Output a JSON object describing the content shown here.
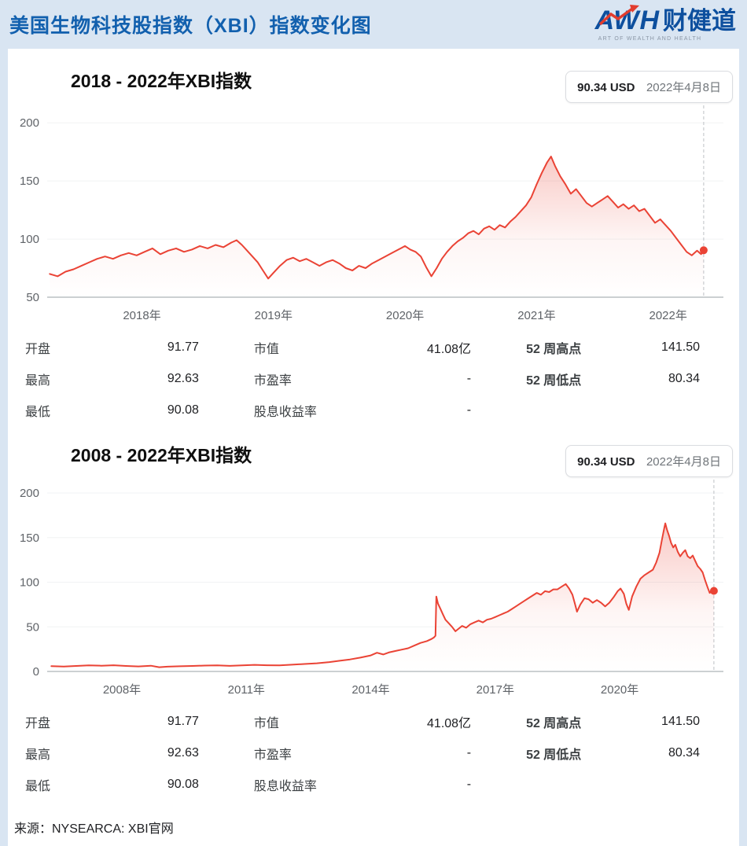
{
  "header": {
    "title": "美国生物科技股指数（XBI）指数变化图",
    "logo": {
      "en": "AWH",
      "cn": "财健道",
      "tagline": "ART OF WEALTH AND HEALTH"
    }
  },
  "chart_data": [
    {
      "type": "line",
      "title": "2018 - 2022年XBI指数",
      "badge": {
        "price": "90.34 USD",
        "date": "2022年4月8日"
      },
      "color": "#ea4335",
      "xlim": [
        2017.28,
        2022.42
      ],
      "ylim": [
        50,
        215
      ],
      "yticks": [
        50,
        100,
        150,
        200
      ],
      "xticks": [
        {
          "label": "2018年",
          "x": 2018
        },
        {
          "label": "2019年",
          "x": 2019
        },
        {
          "label": "2020年",
          "x": 2020
        },
        {
          "label": "2021年",
          "x": 2021
        },
        {
          "label": "2022年",
          "x": 2022
        }
      ],
      "points": [
        [
          2017.3,
          70
        ],
        [
          2017.36,
          68
        ],
        [
          2017.42,
          72
        ],
        [
          2017.48,
          74
        ],
        [
          2017.54,
          77
        ],
        [
          2017.6,
          80
        ],
        [
          2017.66,
          83
        ],
        [
          2017.72,
          85
        ],
        [
          2017.78,
          83
        ],
        [
          2017.84,
          86
        ],
        [
          2017.9,
          88
        ],
        [
          2017.96,
          86
        ],
        [
          2018.02,
          89
        ],
        [
          2018.08,
          92
        ],
        [
          2018.14,
          87
        ],
        [
          2018.2,
          90
        ],
        [
          2018.26,
          92
        ],
        [
          2018.32,
          89
        ],
        [
          2018.38,
          91
        ],
        [
          2018.44,
          94
        ],
        [
          2018.5,
          92
        ],
        [
          2018.56,
          95
        ],
        [
          2018.62,
          93
        ],
        [
          2018.68,
          97
        ],
        [
          2018.72,
          99
        ],
        [
          2018.76,
          95
        ],
        [
          2018.8,
          90
        ],
        [
          2018.84,
          85
        ],
        [
          2018.88,
          80
        ],
        [
          2018.92,
          73
        ],
        [
          2018.96,
          66
        ],
        [
          2019.0,
          71
        ],
        [
          2019.05,
          77
        ],
        [
          2019.1,
          82
        ],
        [
          2019.15,
          84
        ],
        [
          2019.2,
          81
        ],
        [
          2019.25,
          83
        ],
        [
          2019.3,
          80
        ],
        [
          2019.35,
          77
        ],
        [
          2019.4,
          80
        ],
        [
          2019.45,
          82
        ],
        [
          2019.5,
          79
        ],
        [
          2019.55,
          75
        ],
        [
          2019.6,
          73
        ],
        [
          2019.65,
          77
        ],
        [
          2019.7,
          75
        ],
        [
          2019.75,
          79
        ],
        [
          2019.8,
          82
        ],
        [
          2019.85,
          85
        ],
        [
          2019.9,
          88
        ],
        [
          2019.95,
          91
        ],
        [
          2020.0,
          94
        ],
        [
          2020.04,
          91
        ],
        [
          2020.08,
          89
        ],
        [
          2020.12,
          85
        ],
        [
          2020.16,
          76
        ],
        [
          2020.2,
          68
        ],
        [
          2020.24,
          75
        ],
        [
          2020.28,
          83
        ],
        [
          2020.32,
          89
        ],
        [
          2020.36,
          94
        ],
        [
          2020.4,
          98
        ],
        [
          2020.44,
          101
        ],
        [
          2020.48,
          105
        ],
        [
          2020.52,
          107
        ],
        [
          2020.56,
          104
        ],
        [
          2020.6,
          109
        ],
        [
          2020.64,
          111
        ],
        [
          2020.68,
          108
        ],
        [
          2020.72,
          112
        ],
        [
          2020.76,
          110
        ],
        [
          2020.8,
          115
        ],
        [
          2020.84,
          119
        ],
        [
          2020.88,
          124
        ],
        [
          2020.92,
          129
        ],
        [
          2020.96,
          136
        ],
        [
          2021.0,
          147
        ],
        [
          2021.04,
          157
        ],
        [
          2021.08,
          166
        ],
        [
          2021.11,
          171
        ],
        [
          2021.14,
          163
        ],
        [
          2021.18,
          154
        ],
        [
          2021.22,
          147
        ],
        [
          2021.26,
          139
        ],
        [
          2021.3,
          143
        ],
        [
          2021.34,
          137
        ],
        [
          2021.38,
          131
        ],
        [
          2021.42,
          128
        ],
        [
          2021.46,
          131
        ],
        [
          2021.5,
          134
        ],
        [
          2021.54,
          137
        ],
        [
          2021.58,
          132
        ],
        [
          2021.62,
          127
        ],
        [
          2021.66,
          130
        ],
        [
          2021.7,
          126
        ],
        [
          2021.74,
          129
        ],
        [
          2021.78,
          124
        ],
        [
          2021.82,
          126
        ],
        [
          2021.86,
          120
        ],
        [
          2021.9,
          114
        ],
        [
          2021.94,
          117
        ],
        [
          2021.98,
          112
        ],
        [
          2022.02,
          107
        ],
        [
          2022.06,
          101
        ],
        [
          2022.1,
          95
        ],
        [
          2022.14,
          89
        ],
        [
          2022.18,
          86
        ],
        [
          2022.22,
          90
        ],
        [
          2022.25,
          87
        ],
        [
          2022.27,
          90.34
        ]
      ],
      "last_value": 90.34
    },
    {
      "type": "line",
      "title": "2008 - 2022年XBI指数",
      "badge": {
        "price": "90.34 USD",
        "date": "2022年4月8日"
      },
      "color": "#ea4335",
      "xlim": [
        2006.2,
        2022.5
      ],
      "ylim": [
        0,
        215
      ],
      "yticks": [
        0,
        50,
        100,
        150,
        200
      ],
      "xticks": [
        {
          "label": "2008年",
          "x": 2008
        },
        {
          "label": "2011年",
          "x": 2011
        },
        {
          "label": "2014年",
          "x": 2014
        },
        {
          "label": "2017年",
          "x": 2017
        },
        {
          "label": "2020年",
          "x": 2020
        }
      ],
      "points": [
        [
          2006.3,
          6
        ],
        [
          2006.6,
          5.5
        ],
        [
          2006.9,
          6.2
        ],
        [
          2007.2,
          6.8
        ],
        [
          2007.5,
          6.4
        ],
        [
          2007.8,
          7
        ],
        [
          2008.1,
          6.2
        ],
        [
          2008.4,
          5.6
        ],
        [
          2008.7,
          6.4
        ],
        [
          2008.9,
          4.8
        ],
        [
          2009.1,
          5.4
        ],
        [
          2009.4,
          5.8
        ],
        [
          2009.7,
          6.2
        ],
        [
          2010.0,
          6.6
        ],
        [
          2010.3,
          6.9
        ],
        [
          2010.6,
          6.3
        ],
        [
          2010.9,
          6.8
        ],
        [
          2011.2,
          7.4
        ],
        [
          2011.5,
          7
        ],
        [
          2011.8,
          6.8
        ],
        [
          2012.1,
          7.6
        ],
        [
          2012.4,
          8.4
        ],
        [
          2012.7,
          9.2
        ],
        [
          2013.0,
          10.5
        ],
        [
          2013.25,
          12
        ],
        [
          2013.5,
          13.5
        ],
        [
          2013.75,
          15.5
        ],
        [
          2014.0,
          18
        ],
        [
          2014.15,
          21
        ],
        [
          2014.3,
          19
        ],
        [
          2014.45,
          21.5
        ],
        [
          2014.6,
          23
        ],
        [
          2014.75,
          24.5
        ],
        [
          2014.9,
          26
        ],
        [
          2015.05,
          29
        ],
        [
          2015.2,
          32
        ],
        [
          2015.35,
          34
        ],
        [
          2015.45,
          36
        ],
        [
          2015.52,
          38
        ],
        [
          2015.56,
          40
        ],
        [
          2015.58,
          84
        ],
        [
          2015.62,
          76
        ],
        [
          2015.68,
          70
        ],
        [
          2015.74,
          64
        ],
        [
          2015.8,
          58
        ],
        [
          2015.88,
          54
        ],
        [
          2015.96,
          50
        ],
        [
          2016.04,
          45
        ],
        [
          2016.12,
          48
        ],
        [
          2016.2,
          51
        ],
        [
          2016.3,
          49
        ],
        [
          2016.4,
          53
        ],
        [
          2016.5,
          55
        ],
        [
          2016.6,
          57
        ],
        [
          2016.7,
          55
        ],
        [
          2016.8,
          58
        ],
        [
          2016.9,
          59
        ],
        [
          2017.0,
          61
        ],
        [
          2017.1,
          63
        ],
        [
          2017.2,
          65
        ],
        [
          2017.3,
          67
        ],
        [
          2017.4,
          70
        ],
        [
          2017.5,
          73
        ],
        [
          2017.6,
          76
        ],
        [
          2017.7,
          79
        ],
        [
          2017.8,
          82
        ],
        [
          2017.9,
          85
        ],
        [
          2018.0,
          88
        ],
        [
          2018.1,
          86
        ],
        [
          2018.2,
          90
        ],
        [
          2018.3,
          89
        ],
        [
          2018.4,
          92
        ],
        [
          2018.5,
          92
        ],
        [
          2018.6,
          95
        ],
        [
          2018.7,
          98
        ],
        [
          2018.78,
          93
        ],
        [
          2018.86,
          86
        ],
        [
          2018.92,
          76
        ],
        [
          2018.97,
          67
        ],
        [
          2019.05,
          75
        ],
        [
          2019.15,
          82
        ],
        [
          2019.25,
          81
        ],
        [
          2019.35,
          77
        ],
        [
          2019.45,
          80
        ],
        [
          2019.55,
          77
        ],
        [
          2019.65,
          73
        ],
        [
          2019.75,
          77
        ],
        [
          2019.85,
          83
        ],
        [
          2019.95,
          90
        ],
        [
          2020.02,
          93
        ],
        [
          2020.1,
          87
        ],
        [
          2020.16,
          76
        ],
        [
          2020.22,
          69
        ],
        [
          2020.3,
          84
        ],
        [
          2020.4,
          95
        ],
        [
          2020.5,
          104
        ],
        [
          2020.6,
          108
        ],
        [
          2020.7,
          111
        ],
        [
          2020.8,
          114
        ],
        [
          2020.88,
          122
        ],
        [
          2020.96,
          133
        ],
        [
          2021.02,
          148
        ],
        [
          2021.07,
          160
        ],
        [
          2021.1,
          166
        ],
        [
          2021.14,
          159
        ],
        [
          2021.19,
          152
        ],
        [
          2021.24,
          144
        ],
        [
          2021.29,
          139
        ],
        [
          2021.34,
          142
        ],
        [
          2021.4,
          134
        ],
        [
          2021.46,
          129
        ],
        [
          2021.52,
          133
        ],
        [
          2021.58,
          136
        ],
        [
          2021.64,
          129
        ],
        [
          2021.7,
          127
        ],
        [
          2021.76,
          130
        ],
        [
          2021.82,
          124
        ],
        [
          2021.88,
          118
        ],
        [
          2021.94,
          115
        ],
        [
          2022.0,
          111
        ],
        [
          2022.06,
          102
        ],
        [
          2022.12,
          94
        ],
        [
          2022.17,
          88
        ],
        [
          2022.22,
          91
        ],
        [
          2022.27,
          90.34
        ]
      ],
      "last_value": 90.34
    }
  ],
  "stats": {
    "rows": [
      [
        {
          "label": "开盘",
          "value": "91.77"
        },
        {
          "label": "市值",
          "value": "41.08亿"
        },
        {
          "label": "52 周高点",
          "value": "141.50"
        }
      ],
      [
        {
          "label": "最高",
          "value": "92.63"
        },
        {
          "label": "市盈率",
          "value": "-"
        },
        {
          "label": "52 周低点",
          "value": "80.34"
        }
      ],
      [
        {
          "label": "最低",
          "value": "90.08"
        },
        {
          "label": "股息收益率",
          "value": "-"
        },
        {
          "label": "",
          "value": ""
        }
      ]
    ]
  },
  "footer": {
    "source": "来源：NYSEARCA: XBI官网"
  }
}
